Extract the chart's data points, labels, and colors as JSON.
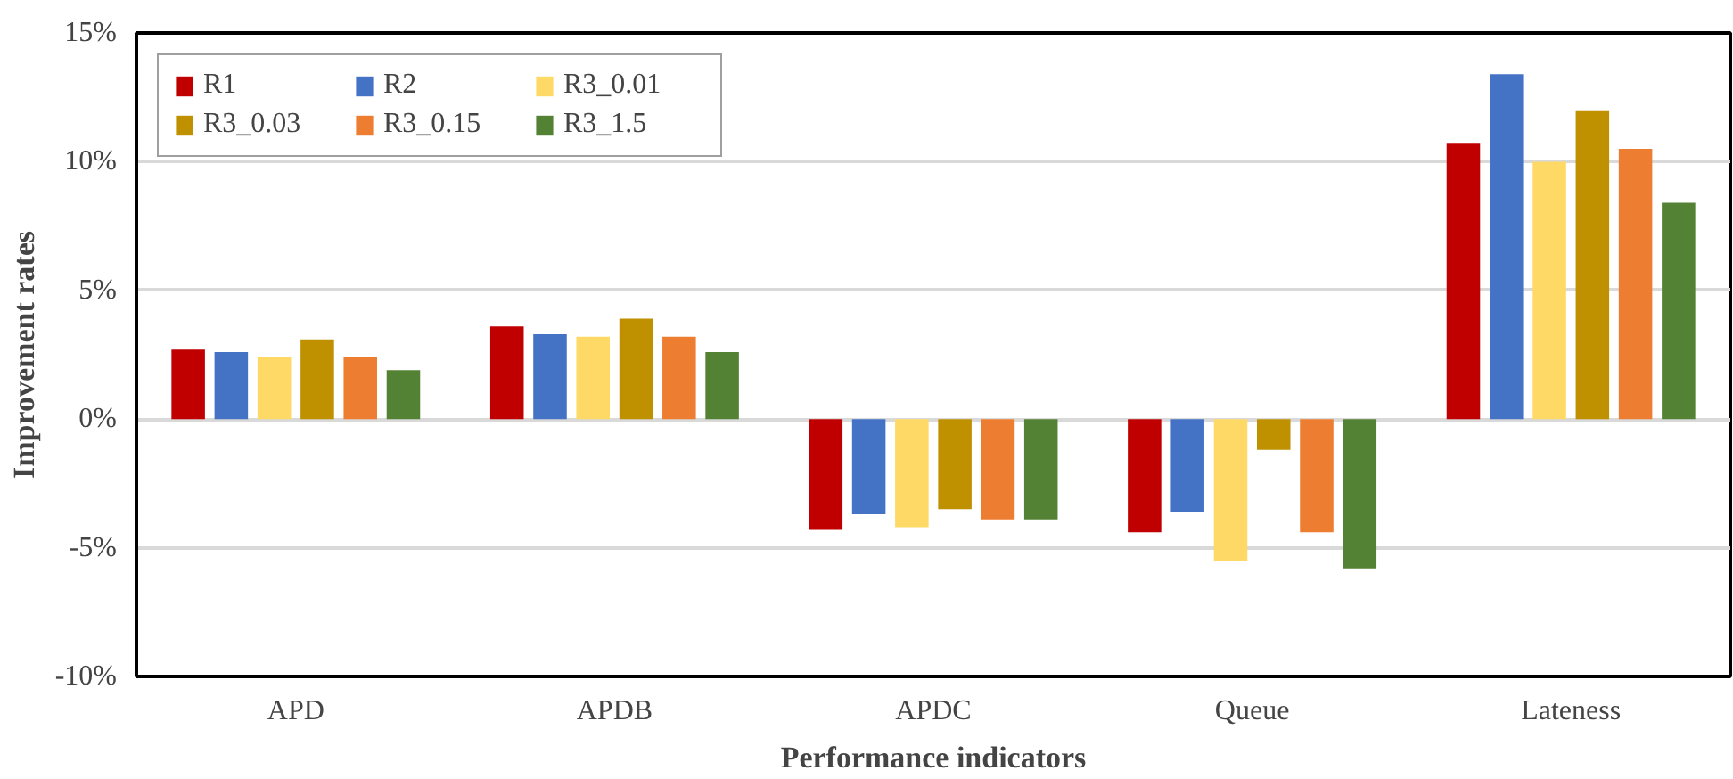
{
  "chart_data": {
    "type": "bar",
    "xlabel": "Performance indicators",
    "ylabel": "Improvement rates",
    "categories": [
      "APD",
      "APDB",
      "APDC",
      "Queue",
      "Lateness"
    ],
    "series": [
      {
        "name": "R1",
        "color": "#c00000",
        "values": [
          2.7,
          3.6,
          -4.3,
          -4.4,
          10.7
        ]
      },
      {
        "name": "R2",
        "color": "#4472c4",
        "values": [
          2.6,
          3.3,
          -3.7,
          -3.6,
          13.4
        ]
      },
      {
        "name": "R3_0.01",
        "color": "#ffd966",
        "values": [
          2.4,
          3.2,
          -4.2,
          -5.5,
          10.0
        ]
      },
      {
        "name": "R3_0.03",
        "color": "#bf9000",
        "values": [
          3.1,
          3.9,
          -3.5,
          -1.2,
          12.0
        ]
      },
      {
        "name": "R3_0.15",
        "color": "#ed7d31",
        "values": [
          2.4,
          3.2,
          -3.9,
          -4.4,
          10.5
        ]
      },
      {
        "name": "R3_1.5",
        "color": "#548235",
        "values": [
          1.9,
          2.6,
          -3.9,
          -5.8,
          8.4
        ]
      }
    ],
    "ylim": [
      -10,
      15
    ],
    "yticks": [
      {
        "value": -10,
        "label": "-10%"
      },
      {
        "value": -5,
        "label": "-5%"
      },
      {
        "value": 0,
        "label": "0%"
      },
      {
        "value": 5,
        "label": "5%"
      },
      {
        "value": 10,
        "label": "10%"
      },
      {
        "value": 15,
        "label": "15%"
      }
    ],
    "grid": "y",
    "legend": "top left"
  }
}
